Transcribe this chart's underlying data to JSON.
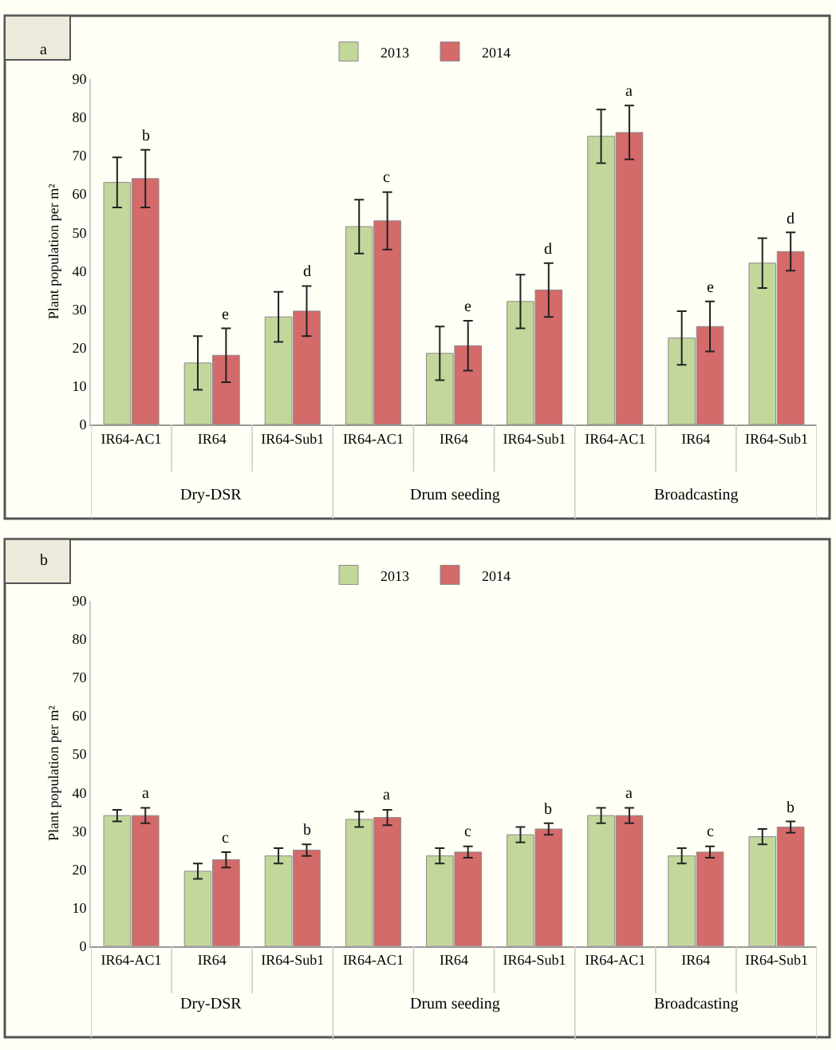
{
  "chart_data": [
    {
      "type": "bar",
      "title": "a",
      "ylabel": "Plant population per m²",
      "categories": [
        "IR64-AC1",
        "IR64",
        "IR64-Sub1",
        "IR64-AC1",
        "IR64",
        "IR64-Sub1",
        "IR64-AC1",
        "IR64",
        "IR64-Sub1"
      ],
      "annotations": [
        "Dry-DSR",
        "Drum seeding",
        "Broadcasting"
      ],
      "ylim": [
        0,
        90
      ],
      "yticks": [
        0,
        10,
        20,
        30,
        40,
        50,
        60,
        70,
        80,
        90
      ],
      "grid": false,
      "legend": "top",
      "series": [
        {
          "name": "2013",
          "color": "#c4d79b",
          "values": [
            63,
            16,
            28,
            51.5,
            18.5,
            32,
            75,
            22.5,
            42
          ],
          "errors": [
            6.5,
            7,
            6.5,
            7,
            7,
            7,
            7,
            7,
            6.5
          ]
        },
        {
          "name": "2014",
          "color": "#d46a6a",
          "values": [
            64,
            18,
            29.5,
            53,
            20.5,
            35,
            76,
            25.5,
            45
          ],
          "errors": [
            7.5,
            7,
            6.5,
            7.5,
            6.5,
            7,
            7,
            6.5,
            5
          ],
          "value_labels": [
            "b",
            "e",
            "d",
            "c",
            "e",
            "d",
            "a",
            "e",
            "d"
          ]
        }
      ]
    },
    {
      "type": "bar",
      "title": "b",
      "ylabel": "Plant population per m²",
      "categories": [
        "IR64-AC1",
        "IR64",
        "IR64-Sub1",
        "IR64-AC1",
        "IR64",
        "IR64-Sub1",
        "IR64-AC1",
        "IR64",
        "IR64-Sub1"
      ],
      "annotations": [
        "Dry-DSR",
        "Drum seeding",
        "Broadcasting"
      ],
      "ylim": [
        0,
        90
      ],
      "yticks": [
        0,
        10,
        20,
        30,
        40,
        50,
        60,
        70,
        80,
        90
      ],
      "grid": false,
      "legend": "top",
      "series": [
        {
          "name": "2013",
          "color": "#c4d79b",
          "values": [
            34,
            19.5,
            23.5,
            33,
            23.5,
            29,
            34,
            23.5,
            28.5
          ],
          "errors": [
            1.5,
            2,
            2,
            2,
            2,
            2,
            2,
            2,
            2
          ]
        },
        {
          "name": "2014",
          "color": "#d46a6a",
          "values": [
            34,
            22.5,
            25,
            33.5,
            24.5,
            30.5,
            34,
            24.5,
            31
          ],
          "errors": [
            2,
            2,
            1.5,
            2,
            1.5,
            1.5,
            2,
            1.5,
            1.5
          ],
          "value_labels": [
            "a",
            "c",
            "b",
            "a",
            "c",
            "b",
            "a",
            "c",
            "b"
          ]
        }
      ]
    }
  ]
}
